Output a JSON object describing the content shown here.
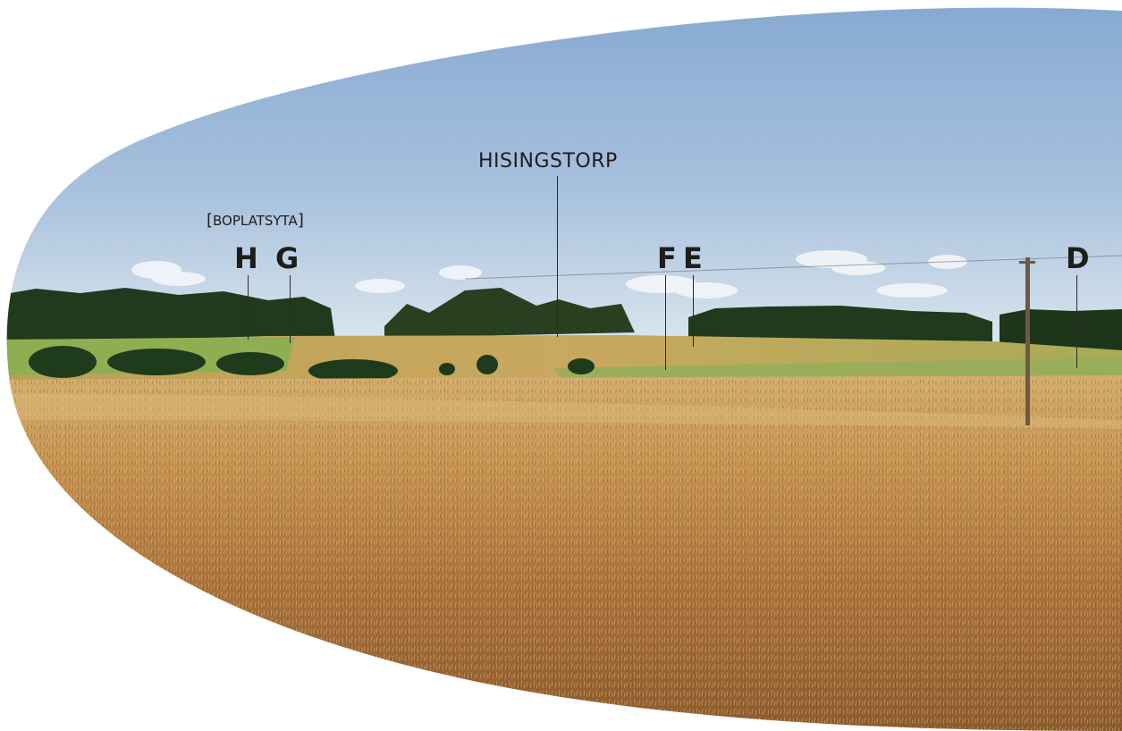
{
  "photo": {
    "sky_top": "#8fb0d6",
    "sky_bottom": "#dbe6f0",
    "treeline": "#1f3a1c",
    "field_green": "#8fae52",
    "field_gold": "#c9a55a",
    "field_foreground": "#a5682f"
  },
  "labels": {
    "place_name": "HISINGSTORP",
    "site_bracket_open": "[",
    "site_text": "BOPLATSYTA",
    "site_bracket_close": "]",
    "markers": [
      "H",
      "G",
      "F",
      "E",
      "D"
    ]
  }
}
